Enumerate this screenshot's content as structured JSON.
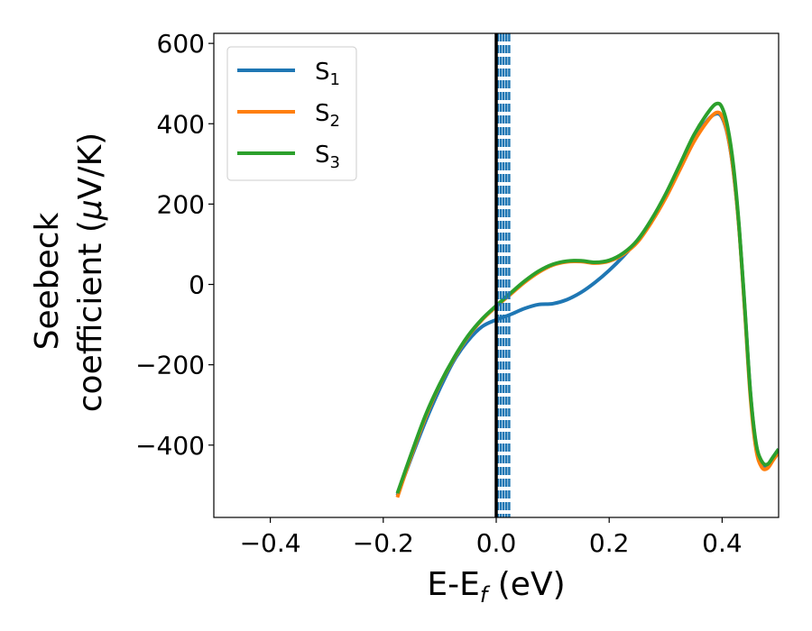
{
  "chart_data": {
    "type": "line",
    "xlabel": {
      "base": "E-E",
      "sub": "f",
      "rest": " (eV)"
    },
    "ylabel": {
      "line1": "Seebeck",
      "line2": "coefficient  (",
      "mu": "μ",
      "line2_end": "V/K)"
    },
    "xlim": [
      -0.5,
      0.5
    ],
    "ylim": [
      -580,
      625
    ],
    "xticks": [
      -0.4,
      -0.2,
      0.0,
      0.2,
      0.4
    ],
    "xtick_labels": [
      "−0.4",
      "−0.2",
      "0.0",
      "0.2",
      "0.4"
    ],
    "yticks": [
      600,
      400,
      200,
      0,
      -200,
      -400
    ],
    "ytick_labels": [
      "600",
      "400",
      "200",
      "0",
      "−200",
      "−400"
    ],
    "vertical_lines": {
      "solid": {
        "x": 0.0,
        "color": "#000000"
      },
      "dashed": {
        "x": [
          0.003,
          0.008,
          0.013,
          0.018,
          0.023
        ],
        "color": "#1f77b4"
      }
    },
    "legend_position": "upper-left",
    "series": [
      {
        "name": "S",
        "sub": "1",
        "color": "#1f77b4",
        "x": [
          -0.175,
          -0.15,
          -0.125,
          -0.1,
          -0.075,
          -0.05,
          -0.025,
          0.0,
          0.025,
          0.05,
          0.075,
          0.1,
          0.125,
          0.15,
          0.175,
          0.2,
          0.225,
          0.25,
          0.275,
          0.3,
          0.325,
          0.35,
          0.375,
          0.39,
          0.4,
          0.41,
          0.42,
          0.43,
          0.44,
          0.45,
          0.46,
          0.47,
          0.48,
          0.49,
          0.5
        ],
        "y": [
          -525,
          -430,
          -340,
          -260,
          -190,
          -140,
          -105,
          -88,
          -75,
          -60,
          -50,
          -48,
          -38,
          -20,
          5,
          35,
          70,
          110,
          160,
          220,
          290,
          360,
          410,
          425,
          415,
          370,
          280,
          140,
          -60,
          -270,
          -400,
          -445,
          -450,
          -430,
          -410
        ]
      },
      {
        "name": "S",
        "sub": "2",
        "color": "#ff7f0e",
        "x": [
          -0.175,
          -0.15,
          -0.125,
          -0.1,
          -0.075,
          -0.05,
          -0.025,
          0.0,
          0.025,
          0.05,
          0.075,
          0.1,
          0.125,
          0.15,
          0.175,
          0.2,
          0.225,
          0.25,
          0.275,
          0.3,
          0.325,
          0.35,
          0.375,
          0.39,
          0.4,
          0.41,
          0.42,
          0.43,
          0.44,
          0.45,
          0.46,
          0.47,
          0.48,
          0.49,
          0.5
        ],
        "y": [
          -530,
          -425,
          -330,
          -250,
          -185,
          -130,
          -88,
          -55,
          -25,
          5,
          30,
          48,
          56,
          57,
          53,
          58,
          75,
          105,
          155,
          215,
          285,
          355,
          408,
          428,
          418,
          372,
          282,
          138,
          -65,
          -280,
          -410,
          -455,
          -458,
          -438,
          -418
        ]
      },
      {
        "name": "S",
        "sub": "3",
        "color": "#2ca02c",
        "x": [
          -0.175,
          -0.15,
          -0.125,
          -0.1,
          -0.075,
          -0.05,
          -0.025,
          0.0,
          0.025,
          0.05,
          0.075,
          0.1,
          0.125,
          0.15,
          0.175,
          0.2,
          0.225,
          0.25,
          0.275,
          0.3,
          0.325,
          0.35,
          0.375,
          0.39,
          0.4,
          0.41,
          0.42,
          0.43,
          0.44,
          0.45,
          0.46,
          0.47,
          0.48,
          0.49,
          0.5
        ],
        "y": [
          -520,
          -420,
          -325,
          -248,
          -183,
          -128,
          -86,
          -53,
          -22,
          8,
          33,
          50,
          58,
          59,
          55,
          60,
          78,
          110,
          162,
          225,
          298,
          372,
          428,
          450,
          440,
          390,
          295,
          145,
          -55,
          -268,
          -395,
          -440,
          -448,
          -430,
          -410
        ]
      }
    ]
  }
}
